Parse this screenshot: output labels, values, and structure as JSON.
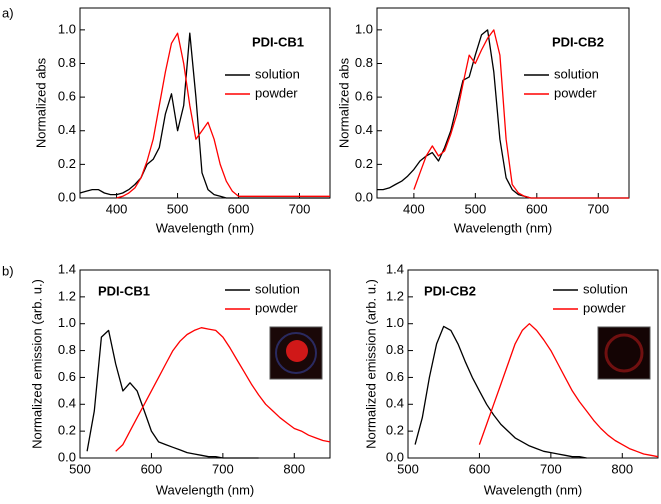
{
  "panel_labels": [
    "a)",
    "b)"
  ],
  "chart_data": [
    {
      "type": "line",
      "annotation": "PDI-CB1",
      "x_label": "Wavelength (nm)",
      "y_label": "Normalized abs",
      "xlim": [
        340,
        750
      ],
      "xticks": [
        400,
        500,
        600,
        700
      ],
      "ylim": [
        0,
        1.13
      ],
      "yticks": [
        {
          "value": 0,
          "label": "0.0"
        },
        0.2,
        0.4,
        0.6,
        0.8,
        {
          "value": 1,
          "label": "1.0"
        }
      ],
      "x": [
        340,
        350,
        360,
        370,
        380,
        390,
        400,
        410,
        420,
        430,
        440,
        450,
        460,
        470,
        480,
        490,
        500,
        510,
        520,
        530,
        540,
        550,
        560,
        570,
        580,
        590,
        600,
        610,
        620,
        630,
        640,
        650,
        660,
        670,
        680,
        690,
        700,
        710,
        720,
        730,
        740,
        750
      ],
      "series": [
        {
          "name": "solution",
          "color": "#000000",
          "values": [
            0.03,
            0.04,
            0.05,
            0.05,
            0.03,
            0.02,
            0.02,
            0.03,
            0.05,
            0.08,
            0.12,
            0.2,
            0.23,
            0.3,
            0.5,
            0.62,
            0.4,
            0.55,
            0.98,
            0.6,
            0.15,
            0.05,
            0.02,
            0.01,
            0,
            0,
            0,
            0,
            0,
            0,
            0,
            0,
            0,
            0,
            0,
            0,
            0,
            0,
            0,
            0,
            0,
            0
          ]
        },
        {
          "name": "powder",
          "color": "#ff0000",
          "values": [
            null,
            null,
            null,
            null,
            null,
            null,
            0,
            0.01,
            0.03,
            0.06,
            0.12,
            0.22,
            0.35,
            0.55,
            0.75,
            0.92,
            0.98,
            0.8,
            0.55,
            0.35,
            0.4,
            0.45,
            0.35,
            0.2,
            0.1,
            0.04,
            0.01,
            0.01,
            0.01,
            0.01,
            0.01,
            0.01,
            0.01,
            0.01,
            0.01,
            0.01,
            0.01,
            0.01,
            0.01,
            0.01,
            0.01,
            0.01
          ]
        }
      ]
    },
    {
      "type": "line",
      "annotation": "PDI-CB2",
      "x_label": "Wavelength (nm)",
      "y_label": "Normalized abs",
      "xlim": [
        340,
        750
      ],
      "xticks": [
        400,
        500,
        600,
        700
      ],
      "ylim": [
        0,
        1.13
      ],
      "yticks": [
        {
          "value": 0,
          "label": "0.0"
        },
        0.2,
        0.4,
        0.6,
        0.8,
        {
          "value": 1,
          "label": "1.0"
        }
      ],
      "x": [
        340,
        350,
        360,
        370,
        380,
        390,
        400,
        410,
        420,
        430,
        440,
        450,
        460,
        470,
        480,
        490,
        500,
        510,
        520,
        530,
        540,
        550,
        560,
        570,
        580,
        590,
        600,
        610,
        620,
        630,
        640,
        650,
        660,
        670,
        680,
        690,
        700,
        710,
        720,
        730,
        740,
        750
      ],
      "series": [
        {
          "name": "solution",
          "color": "#000000",
          "values": [
            0.05,
            0.05,
            0.06,
            0.08,
            0.1,
            0.13,
            0.17,
            0.22,
            0.25,
            0.27,
            0.22,
            0.3,
            0.4,
            0.55,
            0.7,
            0.72,
            0.85,
            0.97,
            1.0,
            0.75,
            0.35,
            0.12,
            0.05,
            0.02,
            0.01,
            0,
            0,
            0,
            0,
            0,
            0,
            0,
            0,
            0,
            0,
            0,
            0,
            0,
            0,
            0,
            0,
            0
          ]
        },
        {
          "name": "powder",
          "color": "#ff0000",
          "values": [
            null,
            null,
            null,
            null,
            null,
            null,
            0.05,
            0.15,
            0.25,
            0.31,
            0.25,
            0.28,
            0.38,
            0.5,
            0.68,
            0.85,
            0.8,
            0.88,
            0.95,
            1.0,
            0.85,
            0.35,
            0.08,
            0.03,
            0.01,
            0,
            0,
            0,
            0,
            0,
            0,
            0,
            0,
            0,
            0,
            0,
            0,
            0,
            0,
            0,
            0,
            0
          ]
        }
      ]
    },
    {
      "type": "line",
      "annotation": "PDI-CB1",
      "x_label": "Wavelength (nm)",
      "y_label": "Normalized emission (arb. u.)",
      "xlim": [
        500,
        850
      ],
      "xticks": [
        500,
        600,
        700,
        800
      ],
      "ylim": [
        0,
        1.4
      ],
      "yticks": [
        {
          "value": 0,
          "label": "0.0"
        },
        0.2,
        0.4,
        0.6,
        0.8,
        {
          "value": 1,
          "label": "1.0"
        },
        1.2,
        1.4
      ],
      "x": [
        510,
        520,
        530,
        540,
        550,
        560,
        570,
        580,
        590,
        600,
        610,
        620,
        630,
        640,
        650,
        660,
        670,
        680,
        690,
        700,
        710,
        720,
        730,
        740,
        750,
        760,
        770,
        780,
        790,
        800,
        810,
        820,
        830,
        840,
        850
      ],
      "series": [
        {
          "name": "solution",
          "color": "#000000",
          "values": [
            0.05,
            0.35,
            0.9,
            0.95,
            0.7,
            0.5,
            0.56,
            0.5,
            0.35,
            0.2,
            0.12,
            0.1,
            0.08,
            0.06,
            0.04,
            0.03,
            0.02,
            0.01,
            0.01,
            0,
            0,
            0,
            0,
            0,
            0,
            null,
            null,
            null,
            null,
            null,
            null,
            null,
            null,
            null,
            null
          ]
        },
        {
          "name": "powder",
          "color": "#ff0000",
          "values": [
            null,
            null,
            null,
            null,
            0.05,
            0.1,
            0.2,
            0.3,
            0.4,
            0.5,
            0.6,
            0.7,
            0.8,
            0.87,
            0.92,
            0.95,
            0.97,
            0.96,
            0.95,
            0.9,
            0.82,
            0.73,
            0.64,
            0.55,
            0.47,
            0.4,
            0.35,
            0.3,
            0.26,
            0.22,
            0.2,
            0.17,
            0.15,
            0.13,
            0.12
          ]
        }
      ]
    },
    {
      "type": "line",
      "annotation": "PDI-CB2",
      "x_label": "Wavelength (nm)",
      "y_label": "Normalized emission (arb. u.)",
      "xlim": [
        500,
        850
      ],
      "xticks": [
        500,
        600,
        700,
        800
      ],
      "ylim": [
        0,
        1.4
      ],
      "yticks": [
        {
          "value": 0,
          "label": "0.0"
        },
        0.2,
        0.4,
        0.6,
        0.8,
        {
          "value": 1,
          "label": "1.0"
        },
        1.2,
        1.4
      ],
      "x": [
        510,
        520,
        530,
        540,
        550,
        560,
        570,
        580,
        590,
        600,
        610,
        620,
        630,
        640,
        650,
        660,
        670,
        680,
        690,
        700,
        710,
        720,
        730,
        740,
        750,
        760,
        770,
        780,
        790,
        800,
        810,
        820,
        830,
        840,
        850
      ],
      "series": [
        {
          "name": "solution",
          "color": "#000000",
          "values": [
            0.1,
            0.3,
            0.6,
            0.85,
            0.98,
            0.95,
            0.85,
            0.72,
            0.6,
            0.5,
            0.4,
            0.32,
            0.25,
            0.2,
            0.15,
            0.12,
            0.09,
            0.07,
            0.05,
            0.04,
            0.03,
            0.02,
            0.01,
            0.01,
            0,
            null,
            null,
            null,
            null,
            null,
            null,
            null,
            null,
            null,
            null
          ]
        },
        {
          "name": "powder",
          "color": "#ff0000",
          "values": [
            null,
            null,
            null,
            null,
            null,
            null,
            null,
            null,
            null,
            0.1,
            0.25,
            0.4,
            0.55,
            0.7,
            0.85,
            0.95,
            1.0,
            0.95,
            0.88,
            0.8,
            0.7,
            0.6,
            0.5,
            0.42,
            0.35,
            0.28,
            0.22,
            0.17,
            0.13,
            0.1,
            0.07,
            0.05,
            0.03,
            0.02,
            0.01
          ]
        }
      ]
    }
  ]
}
